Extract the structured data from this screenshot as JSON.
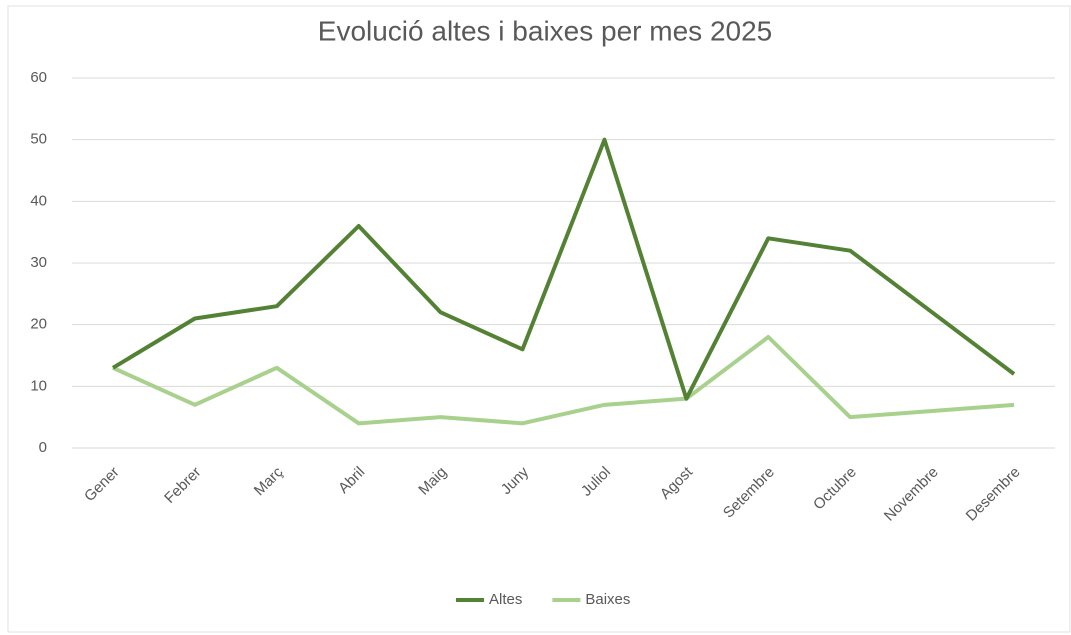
{
  "chart_data": {
    "type": "line",
    "title": "Evolució altes i baixes per mes 2025",
    "categories": [
      "Gener",
      "Febrer",
      "Març",
      "Abril",
      "Maig",
      "Juny",
      "Juliol",
      "Agost",
      "Setembre",
      "Octubre",
      "Novembre",
      "Desembre"
    ],
    "series": [
      {
        "name": "Altes",
        "color": "#548235",
        "values": [
          13,
          21,
          23,
          36,
          22,
          16,
          50,
          8,
          34,
          32,
          22,
          12
        ]
      },
      {
        "name": "Baixes",
        "color": "#a9d18e",
        "values": [
          13,
          7,
          13,
          4,
          5,
          4,
          7,
          8,
          18,
          5,
          6,
          7
        ]
      }
    ],
    "ylim": [
      0,
      60
    ],
    "yticks": [
      0,
      10,
      20,
      30,
      40,
      50,
      60
    ],
    "grid": true,
    "legend": "bottom"
  }
}
